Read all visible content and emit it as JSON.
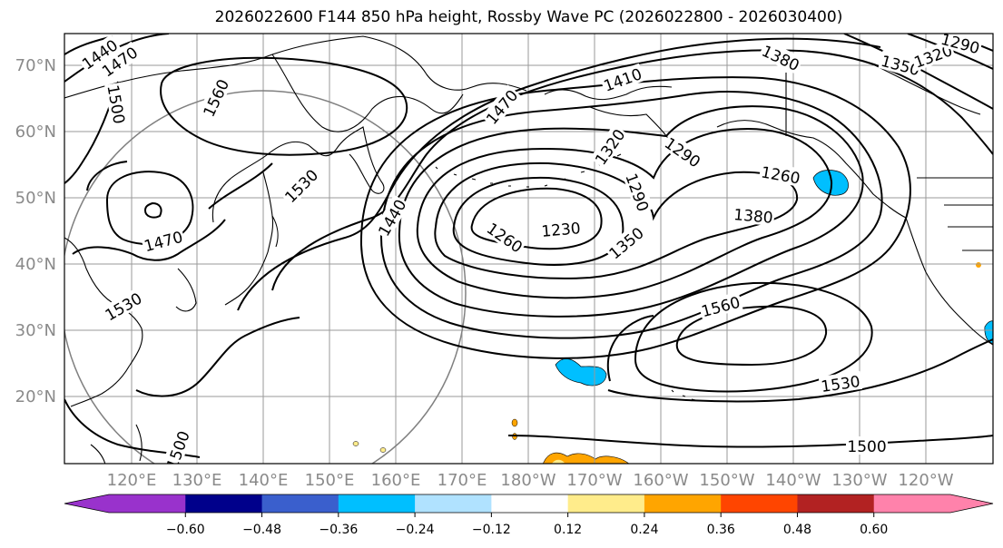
{
  "title": "2026022600 F144 850 hPa height, Rossby Wave PC (2026022800 - 2026030400)",
  "map": {
    "lat_labels": [
      "70°N",
      "60°N",
      "50°N",
      "40°N",
      "30°N",
      "20°N"
    ],
    "lon_labels": [
      "120°E",
      "130°E",
      "140°E",
      "150°E",
      "160°E",
      "170°E",
      "180°W",
      "170°W",
      "160°W",
      "150°W",
      "140°W",
      "130°W",
      "120°W"
    ],
    "contour_labels": [
      {
        "text": "1440"
      },
      {
        "text": "1470"
      },
      {
        "text": "1500"
      },
      {
        "text": "1560"
      },
      {
        "text": "1530"
      },
      {
        "text": "1470"
      },
      {
        "text": "1530"
      },
      {
        "text": "1440"
      },
      {
        "text": "1470"
      },
      {
        "text": "1410"
      },
      {
        "text": "1320"
      },
      {
        "text": "1290"
      },
      {
        "text": "1290"
      },
      {
        "text": "1260"
      },
      {
        "text": "1230"
      },
      {
        "text": "1260"
      },
      {
        "text": "1350"
      },
      {
        "text": "1380"
      },
      {
        "text": "1380"
      },
      {
        "text": "1350"
      },
      {
        "text": "1320"
      },
      {
        "text": "1290"
      },
      {
        "text": "1560"
      },
      {
        "text": "1530"
      },
      {
        "text": "1500"
      },
      {
        "text": "1500"
      }
    ]
  },
  "colorbar": {
    "ticks": [
      "−0.60",
      "−0.48",
      "−0.36",
      "−0.24",
      "−0.12",
      "0.12",
      "0.24",
      "0.36",
      "0.48",
      "0.60"
    ],
    "colors": [
      "#9932cc",
      "#00008b",
      "#3a5fcd",
      "#00bfff",
      "#b0e2ff",
      "#ffffff",
      "#ffec8b",
      "#ffa500",
      "#ff4500",
      "#b22222",
      "#ff82ab",
      "#ff82ab"
    ]
  }
}
